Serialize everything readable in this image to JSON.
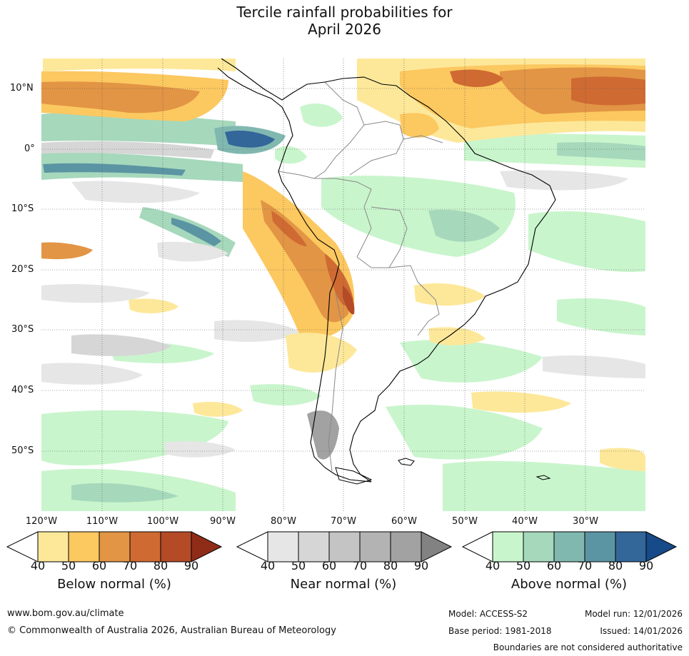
{
  "title": {
    "line1": "Tercile rainfall probabilities for",
    "line2": "April 2026"
  },
  "axes": {
    "lat_labels": [
      "10°N",
      "0°",
      "10°S",
      "20°S",
      "30°S",
      "40°S",
      "50°S"
    ],
    "lon_labels": [
      "120°W",
      "110°W",
      "100°W",
      "90°W",
      "80°W",
      "70°W",
      "60°W",
      "50°W",
      "40°W",
      "30°W"
    ]
  },
  "legends": [
    {
      "title": "Below normal (%)",
      "ticks": [
        "40",
        "50",
        "60",
        "70",
        "80",
        "90"
      ],
      "colors": [
        "#fde89a",
        "#fcc860",
        "#e29544",
        "#cf6a33",
        "#b44a26",
        "#8f2c18"
      ]
    },
    {
      "title": "Near normal (%)",
      "ticks": [
        "40",
        "50",
        "60",
        "70",
        "80",
        "90"
      ],
      "colors": [
        "#e6e6e6",
        "#d6d6d6",
        "#c4c4c4",
        "#b3b3b3",
        "#a2a2a2",
        "#828282"
      ]
    },
    {
      "title": "Above normal (%)",
      "ticks": [
        "40",
        "50",
        "60",
        "70",
        "80",
        "90"
      ],
      "colors": [
        "#c9f5cc",
        "#a6d8bc",
        "#80b8b0",
        "#5b95a3",
        "#336699",
        "#174a88"
      ]
    }
  ],
  "footer": {
    "website": "www.bom.gov.au/climate",
    "copyright": "© Commonwealth of Australia 2026, Australian Bureau of Meteorology",
    "model": "Model: ACCESS-S2",
    "base_period": "Base period: 1981-2018",
    "model_run": "Model run: 12/01/2026",
    "issued": "Issued: 14/01/2026",
    "disclaimer": "Boundaries are not considered authoritative"
  },
  "colors": {
    "land_outline": "#000000",
    "borders": "#888888",
    "grid": "#555555"
  }
}
